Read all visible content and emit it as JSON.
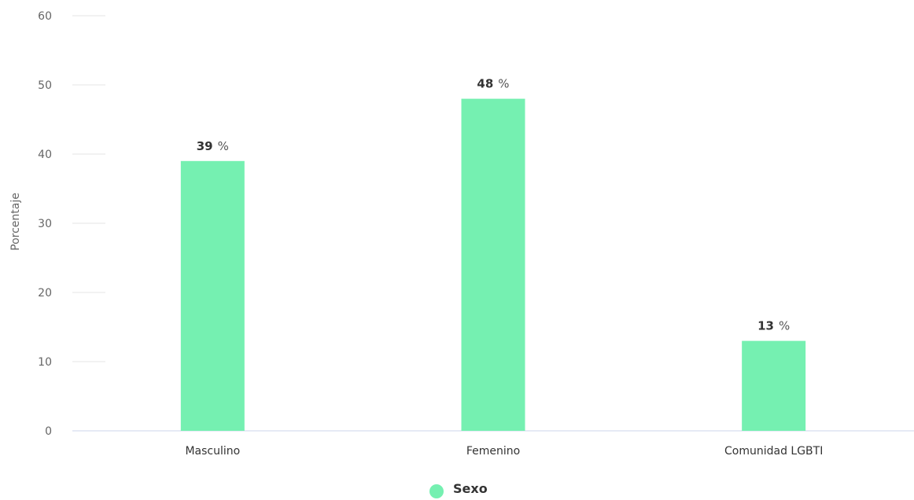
{
  "chart_data": {
    "type": "bar",
    "categories": [
      "Masculino",
      "Femenino",
      "Comunidad  LGBTI"
    ],
    "series": [
      {
        "name": "Sexo",
        "values": [
          39,
          48,
          13
        ]
      }
    ],
    "title": "",
    "xlabel": "",
    "ylabel": "Porcentaje",
    "ylim": [
      0,
      60
    ],
    "yticks": [
      "0",
      "10",
      "20",
      "30",
      "40",
      "50",
      "60"
    ],
    "value_suffix": "%",
    "bar_color": "#75f0b1",
    "grid": true,
    "legend": "bottom-center"
  }
}
